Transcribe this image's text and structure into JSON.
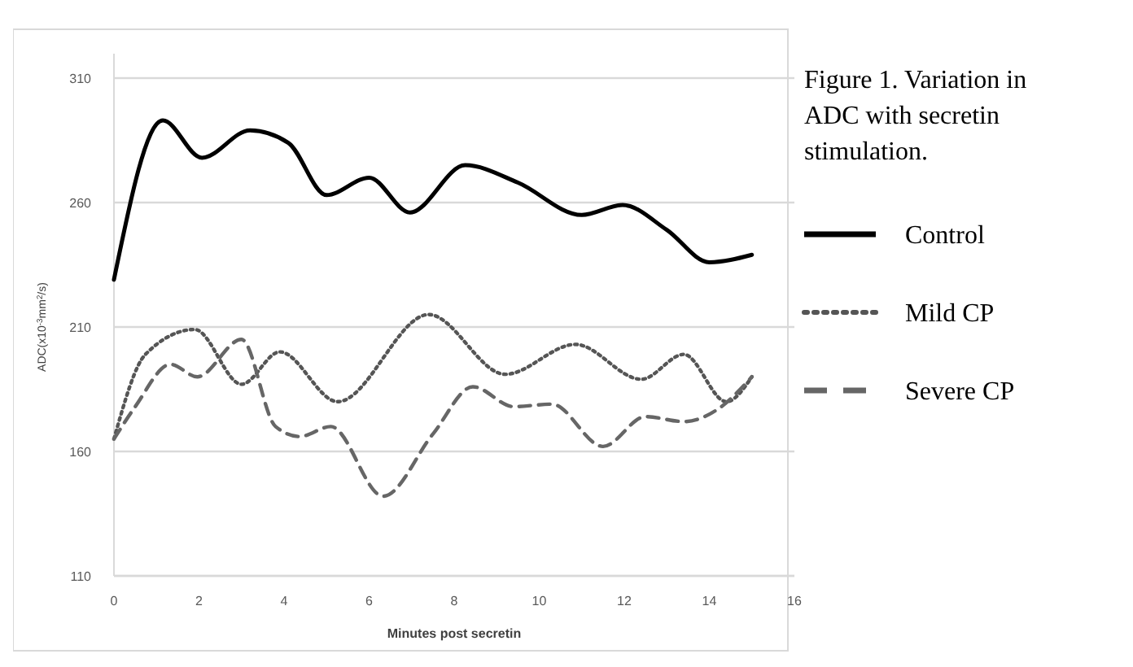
{
  "chart_data": {
    "type": "line",
    "title": "Figure 1. Variation in ADC with secretin stimulation.",
    "xlabel": "Minutes post secretin",
    "ylabel": "ADC(x10$^{-3}$mm$^{2}$/s)",
    "xlim": [
      0,
      16
    ],
    "xticks": [
      0,
      2,
      4,
      6,
      8,
      10,
      12,
      14,
      16
    ],
    "ylim": [
      110,
      310
    ],
    "yticks": [
      110,
      160,
      210,
      260,
      310
    ],
    "grid": "y",
    "legend": "right",
    "series": [
      {
        "name": "Control",
        "color": "#000000",
        "line_style": "solid",
        "x": [
          0,
          1.15,
          2.07,
          3.2,
          4.1,
          5.0,
          6.0,
          6.96,
          8.26,
          9.5,
          11.0,
          11.96,
          13.0,
          14.0,
          15.0
        ],
        "values": [
          229,
          293,
          278,
          289,
          284,
          263,
          270,
          256,
          275,
          268,
          255,
          259,
          249,
          236,
          239
        ]
      },
      {
        "name": "Mild CP",
        "color": "#555555",
        "line_style": "dotted",
        "x": [
          0,
          0.74,
          1.9,
          3.0,
          3.9,
          5.26,
          7.4,
          9.2,
          10.85,
          12.4,
          13.4,
          14.4,
          15.0
        ],
        "values": [
          165,
          199,
          209,
          187,
          200,
          180,
          215,
          191,
          203,
          189,
          199,
          180,
          190
        ]
      },
      {
        "name": "Severe CP",
        "color": "#666666",
        "line_style": "dashed",
        "x": [
          0,
          0.5,
          1.33,
          1.96,
          3.0,
          3.8,
          4.37,
          5.1,
          6.33,
          7.5,
          8.44,
          9.4,
          10.3,
          11.5,
          12.5,
          13.4,
          14.2,
          15.0
        ],
        "values": [
          165,
          178,
          195,
          190,
          205,
          170,
          166,
          170,
          142,
          167,
          186,
          178,
          179,
          162,
          174,
          172,
          177,
          190
        ]
      }
    ]
  }
}
